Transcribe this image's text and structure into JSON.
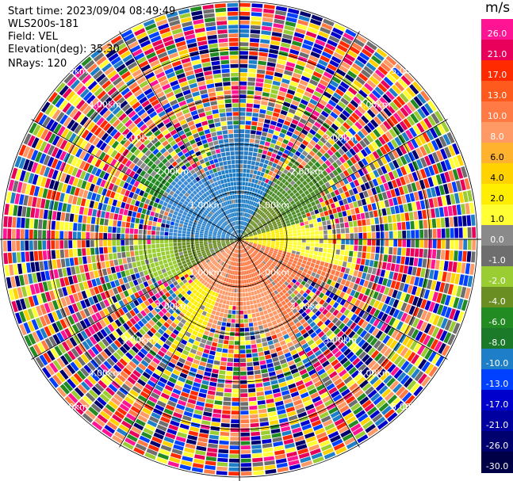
{
  "info": {
    "start_time": "Start time: 2023/09/04 08:49:49",
    "station": "WLS200s-181",
    "field": "Field: VEL",
    "elevation": "Elevation(deg): 35.30",
    "nrays": "NRays: 120"
  },
  "colorbar": {
    "unit": "m/s",
    "levels": [
      {
        "label": "26.0",
        "color": "#ff1493"
      },
      {
        "label": "21.0",
        "color": "#e8005a"
      },
      {
        "label": "17.0",
        "color": "#ff2a00"
      },
      {
        "label": "13.0",
        "color": "#ff5a1e"
      },
      {
        "label": "10.0",
        "color": "#ff7a44"
      },
      {
        "label": "8.0",
        "color": "#ff9966"
      },
      {
        "label": "6.0",
        "color": "#ffb22e"
      },
      {
        "label": "4.0",
        "color": "#ffd200"
      },
      {
        "label": "2.0",
        "color": "#ffee00"
      },
      {
        "label": "1.0",
        "color": "#ffff33"
      },
      {
        "label": "0.0",
        "color": "#8a8a8a"
      },
      {
        "label": "-1.0",
        "color": "#6e6e6e"
      },
      {
        "label": "-2.0",
        "color": "#9acd32"
      },
      {
        "label": "-4.0",
        "color": "#6b8e23"
      },
      {
        "label": "-6.0",
        "color": "#228b22"
      },
      {
        "label": "-8.0",
        "color": "#1a7a2a"
      },
      {
        "label": "-10.0",
        "color": "#1e7fc8"
      },
      {
        "label": "-13.0",
        "color": "#0040ff"
      },
      {
        "label": "-17.0",
        "color": "#0000cd"
      },
      {
        "label": "-21.0",
        "color": "#0000a0"
      },
      {
        "label": "-26.0",
        "color": "#00006e"
      },
      {
        "label": "-30.0",
        "color": "#000046"
      }
    ]
  },
  "range_labels": [
    "1.00km",
    "2.00km",
    "3.00km",
    "4.00km",
    "5.00km"
  ],
  "noise_palette": [
    "#ff1493",
    "#e8005a",
    "#ff2a00",
    "#ff7a44",
    "#ffd200",
    "#ffff33",
    "#6e6e6e",
    "#228b22",
    "#1e7fc8",
    "#0040ff",
    "#0000cd",
    "#00006e",
    "#9acd32",
    "#ff9966"
  ]
}
